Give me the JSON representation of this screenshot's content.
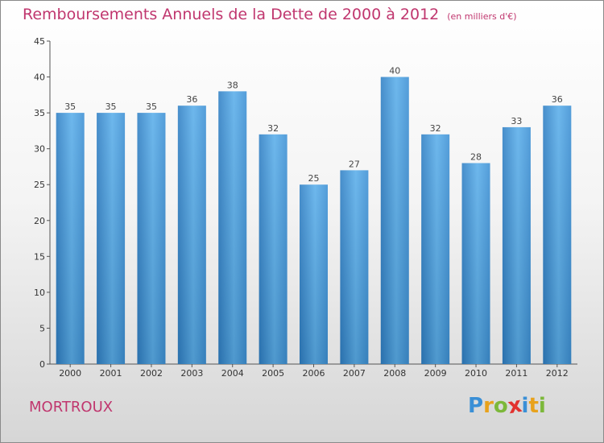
{
  "title": "Remboursements Annuels de la Dette de 2000 à 2012",
  "unit": "(en milliers d'€)",
  "place": "MORTROUX",
  "logo": {
    "letters": [
      "P",
      "r",
      "o",
      "x",
      "i",
      "t",
      "i"
    ],
    "colors": [
      "#3a8fd6",
      "#e8a21c",
      "#7cb83a",
      "#e2322f",
      "#3a8fd6",
      "#e8a21c",
      "#7cb83a"
    ]
  },
  "colors": {
    "bar": "#3d90d4",
    "bar_light": "#5aaeea",
    "title": "#c0366e"
  },
  "chart_data": {
    "type": "bar",
    "categories": [
      "2000",
      "2001",
      "2002",
      "2003",
      "2004",
      "2005",
      "2006",
      "2007",
      "2008",
      "2009",
      "2010",
      "2011",
      "2012"
    ],
    "values": [
      35,
      35,
      35,
      36,
      38,
      32,
      25,
      27,
      40,
      32,
      28,
      33,
      36
    ],
    "yticks": [
      0,
      5,
      10,
      15,
      20,
      25,
      30,
      35,
      40,
      45
    ],
    "ylim": [
      0,
      45
    ],
    "grid": false,
    "data_labels": true
  }
}
